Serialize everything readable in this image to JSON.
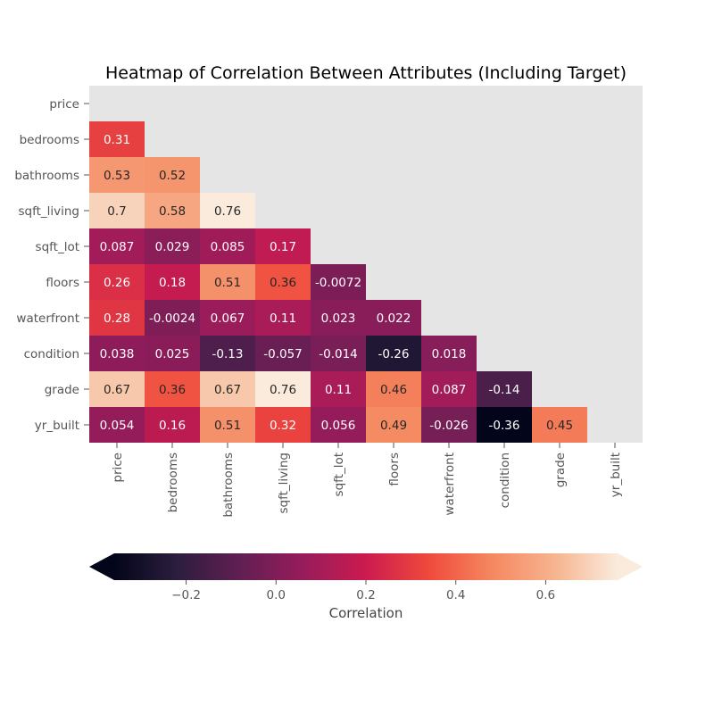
{
  "chart_data": {
    "type": "heatmap",
    "title": "Heatmap of Correlation Between Attributes (Including Target)",
    "rows": [
      "price",
      "bedrooms",
      "bathrooms",
      "sqft_living",
      "sqft_lot",
      "floors",
      "waterfront",
      "condition",
      "grade",
      "yr_built"
    ],
    "columns": [
      "price",
      "bedrooms",
      "bathrooms",
      "sqft_living",
      "sqft_lot",
      "floors",
      "waterfront",
      "condition",
      "grade",
      "yr_built"
    ],
    "mask": "upper triangle and diagonal hidden",
    "cells": [
      {
        "row": 1,
        "col": 0,
        "value": 0.31,
        "label": "0.31"
      },
      {
        "row": 2,
        "col": 0,
        "value": 0.53,
        "label": "0.53"
      },
      {
        "row": 2,
        "col": 1,
        "value": 0.52,
        "label": "0.52"
      },
      {
        "row": 3,
        "col": 0,
        "value": 0.7,
        "label": "0.7"
      },
      {
        "row": 3,
        "col": 1,
        "value": 0.58,
        "label": "0.58"
      },
      {
        "row": 3,
        "col": 2,
        "value": 0.76,
        "label": "0.76"
      },
      {
        "row": 4,
        "col": 0,
        "value": 0.087,
        "label": "0.087"
      },
      {
        "row": 4,
        "col": 1,
        "value": 0.029,
        "label": "0.029"
      },
      {
        "row": 4,
        "col": 2,
        "value": 0.085,
        "label": "0.085"
      },
      {
        "row": 4,
        "col": 3,
        "value": 0.17,
        "label": "0.17"
      },
      {
        "row": 5,
        "col": 0,
        "value": 0.26,
        "label": "0.26"
      },
      {
        "row": 5,
        "col": 1,
        "value": 0.18,
        "label": "0.18"
      },
      {
        "row": 5,
        "col": 2,
        "value": 0.51,
        "label": "0.51"
      },
      {
        "row": 5,
        "col": 3,
        "value": 0.36,
        "label": "0.36"
      },
      {
        "row": 5,
        "col": 4,
        "value": -0.0072,
        "label": "-0.0072"
      },
      {
        "row": 6,
        "col": 0,
        "value": 0.28,
        "label": "0.28"
      },
      {
        "row": 6,
        "col": 1,
        "value": -0.0024,
        "label": "-0.0024"
      },
      {
        "row": 6,
        "col": 2,
        "value": 0.067,
        "label": "0.067"
      },
      {
        "row": 6,
        "col": 3,
        "value": 0.11,
        "label": "0.11"
      },
      {
        "row": 6,
        "col": 4,
        "value": 0.023,
        "label": "0.023"
      },
      {
        "row": 6,
        "col": 5,
        "value": 0.022,
        "label": "0.022"
      },
      {
        "row": 7,
        "col": 0,
        "value": 0.038,
        "label": "0.038"
      },
      {
        "row": 7,
        "col": 1,
        "value": 0.025,
        "label": "0.025"
      },
      {
        "row": 7,
        "col": 2,
        "value": -0.13,
        "label": "-0.13"
      },
      {
        "row": 7,
        "col": 3,
        "value": -0.057,
        "label": "-0.057"
      },
      {
        "row": 7,
        "col": 4,
        "value": -0.014,
        "label": "-0.014"
      },
      {
        "row": 7,
        "col": 5,
        "value": -0.26,
        "label": "-0.26"
      },
      {
        "row": 7,
        "col": 6,
        "value": 0.018,
        "label": "0.018"
      },
      {
        "row": 8,
        "col": 0,
        "value": 0.67,
        "label": "0.67"
      },
      {
        "row": 8,
        "col": 1,
        "value": 0.36,
        "label": "0.36"
      },
      {
        "row": 8,
        "col": 2,
        "value": 0.67,
        "label": "0.67"
      },
      {
        "row": 8,
        "col": 3,
        "value": 0.76,
        "label": "0.76"
      },
      {
        "row": 8,
        "col": 4,
        "value": 0.11,
        "label": "0.11"
      },
      {
        "row": 8,
        "col": 5,
        "value": 0.46,
        "label": "0.46"
      },
      {
        "row": 8,
        "col": 6,
        "value": 0.087,
        "label": "0.087"
      },
      {
        "row": 8,
        "col": 7,
        "value": -0.14,
        "label": "-0.14"
      },
      {
        "row": 9,
        "col": 0,
        "value": 0.054,
        "label": "0.054"
      },
      {
        "row": 9,
        "col": 1,
        "value": 0.16,
        "label": "0.16"
      },
      {
        "row": 9,
        "col": 2,
        "value": 0.51,
        "label": "0.51"
      },
      {
        "row": 9,
        "col": 3,
        "value": 0.32,
        "label": "0.32"
      },
      {
        "row": 9,
        "col": 4,
        "value": 0.056,
        "label": "0.056"
      },
      {
        "row": 9,
        "col": 5,
        "value": 0.49,
        "label": "0.49"
      },
      {
        "row": 9,
        "col": 6,
        "value": -0.026,
        "label": "-0.026"
      },
      {
        "row": 9,
        "col": 7,
        "value": -0.36,
        "label": "-0.36"
      },
      {
        "row": 9,
        "col": 8,
        "value": 0.45,
        "label": "0.45"
      }
    ],
    "colorbar": {
      "label": "Correlation",
      "orientation": "horizontal",
      "placement": "bottom",
      "extend": "both",
      "vmin": -0.36,
      "vmax": 0.76,
      "ticks": [
        -0.2,
        0.0,
        0.2,
        0.4,
        0.6
      ],
      "tick_labels": [
        "−0.2",
        "0.0",
        "0.2",
        "0.4",
        "0.6"
      ]
    },
    "colormap": "rocket",
    "colormap_stops": [
      "#03051a",
      "#2c1e3e",
      "#611f53",
      "#971c5b",
      "#cb1b4f",
      "#ef4a3c",
      "#f58860",
      "#f6b48f",
      "#faebdd"
    ],
    "masked_color": "#e5e5e5",
    "legend": "none"
  }
}
